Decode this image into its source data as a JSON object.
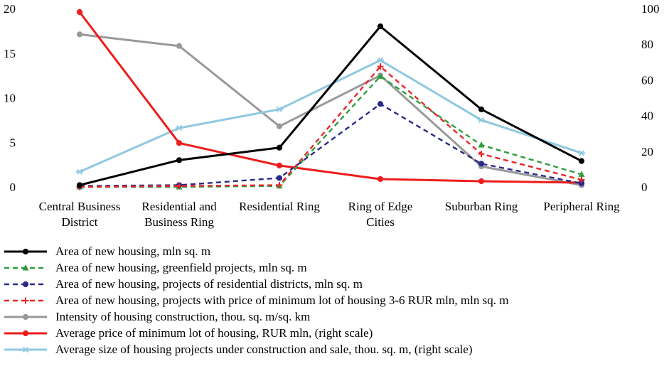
{
  "chart_data": {
    "type": "line",
    "categories": [
      [
        "Central Business",
        "District"
      ],
      [
        "Residential and",
        "Business Ring"
      ],
      [
        "Residential Ring"
      ],
      [
        "Ring of Edge",
        "Cities"
      ],
      [
        "Suburban Ring"
      ],
      [
        "Peripheral Ring"
      ]
    ],
    "left_axis": {
      "min": 0,
      "max": 20,
      "ticks": [
        "0",
        "5",
        "10",
        "15",
        "20"
      ]
    },
    "right_axis": {
      "min": 0,
      "max": 100,
      "ticks": [
        "0",
        "20",
        "40",
        "60",
        "80",
        "100"
      ]
    },
    "series": [
      {
        "name": "Area of new housing, mln sq. m",
        "axis": "left",
        "color": "#000000",
        "dash": "solid",
        "marker": "circle",
        "values": [
          0.2,
          3.0,
          4.4,
          18.0,
          8.7,
          2.9
        ]
      },
      {
        "name": "Area of new housing, greenfield projects, mln sq. m",
        "axis": "left",
        "color": "#2e9e3e",
        "dash": "dashed",
        "marker": "triangle",
        "values": [
          0.0,
          0.0,
          0.1,
          12.4,
          4.7,
          1.4
        ]
      },
      {
        "name": "Area of new housing, projects of residential districts, mln sq. m",
        "axis": "left",
        "color": "#2a2a8c",
        "dash": "dashed",
        "marker": "circle",
        "values": [
          0.1,
          0.2,
          1.0,
          9.3,
          2.6,
          0.4
        ]
      },
      {
        "name": "Area of new housing, projects with price of minimum lot of housing 3-6 RUR mln, mln sq. m",
        "axis": "left",
        "color": "#e8282a",
        "dash": "dashed",
        "marker": "plus",
        "values": [
          0.0,
          0.1,
          0.2,
          13.5,
          3.7,
          0.8
        ]
      },
      {
        "name": "Intensity of housing construction, thou. sq. m/sq. km",
        "axis": "left",
        "color": "#999999",
        "dash": "solid",
        "marker": "circle",
        "values": [
          17.1,
          15.8,
          6.8,
          12.5,
          2.3,
          0.2
        ]
      },
      {
        "name": "Average price of minimum lot of housing, RUR mln, (right scale)",
        "axis": "right",
        "color": "#ee1c1c",
        "dash": "solid",
        "marker": "circle",
        "values": [
          98,
          24.6,
          12,
          4.4,
          3.2,
          2.4
        ]
      },
      {
        "name": "Average size of housing projects under construction and sale, thou. sq. m, (right scale)",
        "axis": "right",
        "color": "#8fc8e0",
        "dash": "solid",
        "marker": "asterisk",
        "values": [
          8.5,
          33,
          43.5,
          71,
          37.5,
          19
        ]
      }
    ]
  }
}
